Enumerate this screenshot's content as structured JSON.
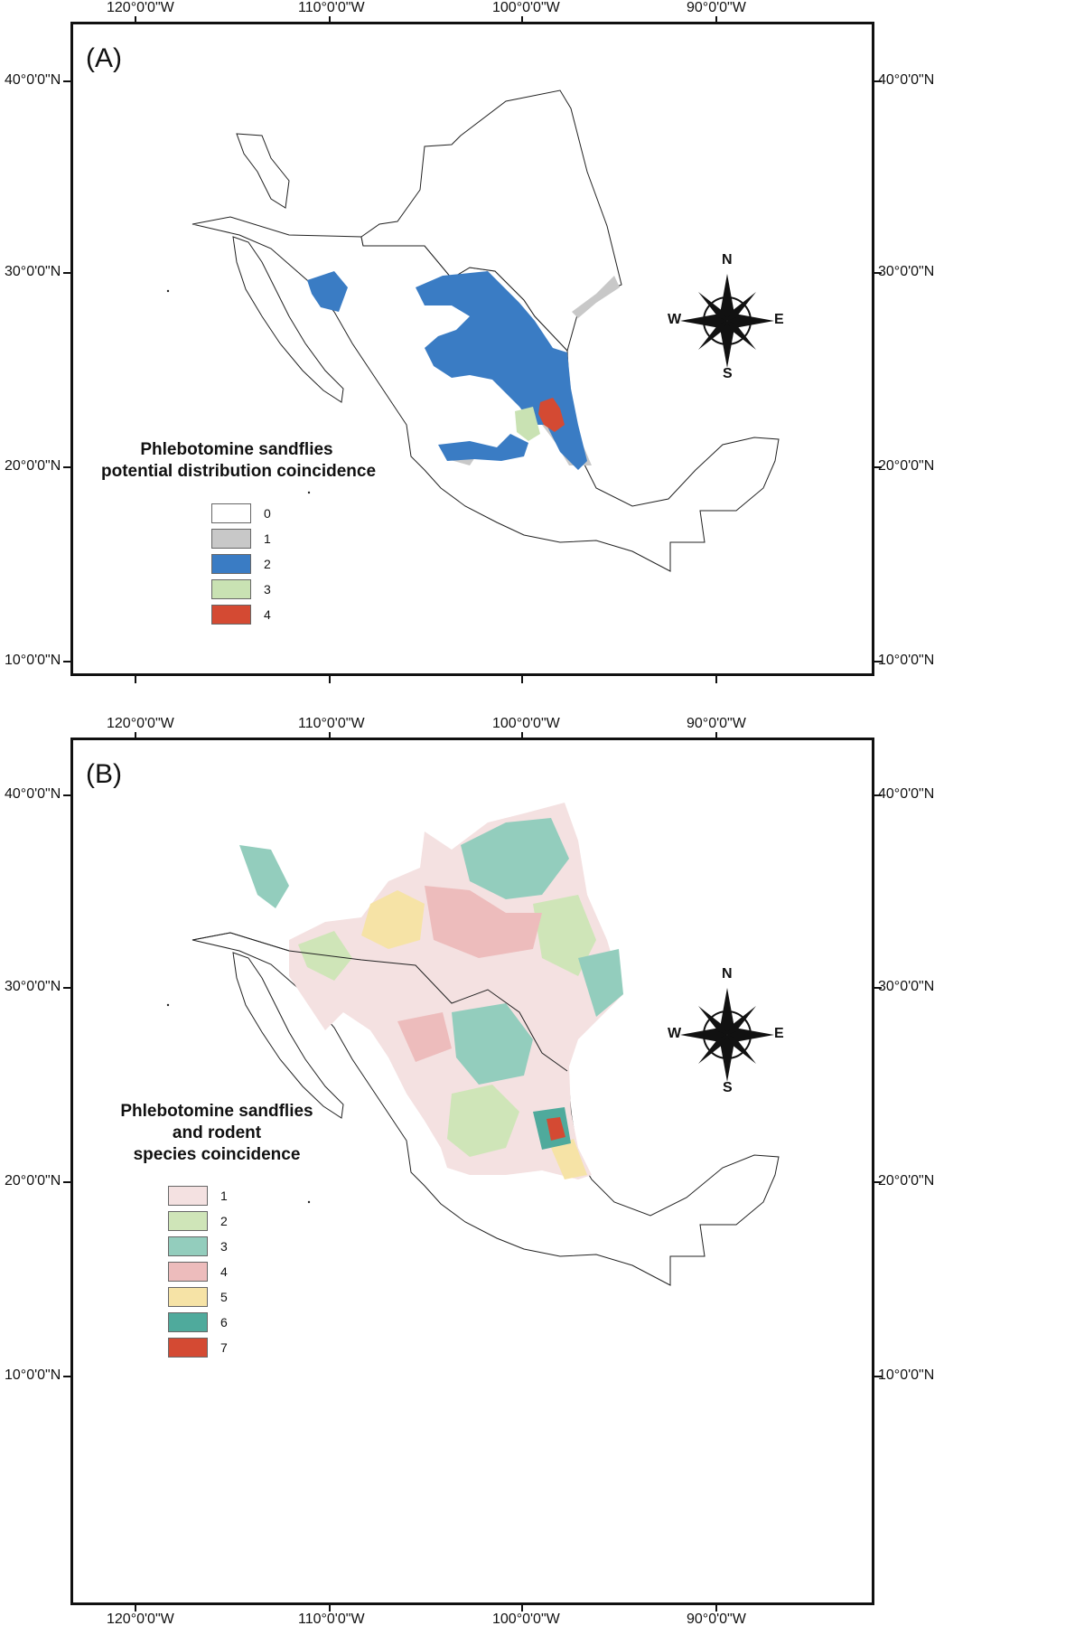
{
  "axis": {
    "longitude_ticks": [
      "120°0'0\"W",
      "110°0'0\"W",
      "100°0'0\"W",
      "90°0'0\"W"
    ],
    "latitude_ticks": [
      "40°0'0\"N",
      "30°0'0\"N",
      "20°0'0\"N",
      "10°0'0\"N"
    ]
  },
  "panel_a": {
    "letter": "(A)",
    "legend_title_lines": [
      "Phlebotomine sandflies",
      "potential distribution coincidence"
    ],
    "legend": [
      {
        "label": "0",
        "color": "#ffffff"
      },
      {
        "label": "1",
        "color": "#c8c8c8"
      },
      {
        "label": "2",
        "color": "#3a7cc4"
      },
      {
        "label": "3",
        "color": "#c9e2b3"
      },
      {
        "label": "4",
        "color": "#d44a33"
      }
    ]
  },
  "panel_b": {
    "letter": "(B)",
    "legend_title_lines": [
      "Phlebotomine sandflies",
      "and rodent",
      "species coincidence"
    ],
    "legend": [
      {
        "label": "1",
        "color": "#f4e1e1"
      },
      {
        "label": "2",
        "color": "#cfe5b8"
      },
      {
        "label": "3",
        "color": "#93cdbd"
      },
      {
        "label": "4",
        "color": "#edbcbc"
      },
      {
        "label": "5",
        "color": "#f6e3a6"
      },
      {
        "label": "6",
        "color": "#4faa9c"
      },
      {
        "label": "7",
        "color": "#d44a33"
      }
    ]
  },
  "compass": {
    "n": "N",
    "s": "S",
    "e": "E",
    "w": "W"
  }
}
